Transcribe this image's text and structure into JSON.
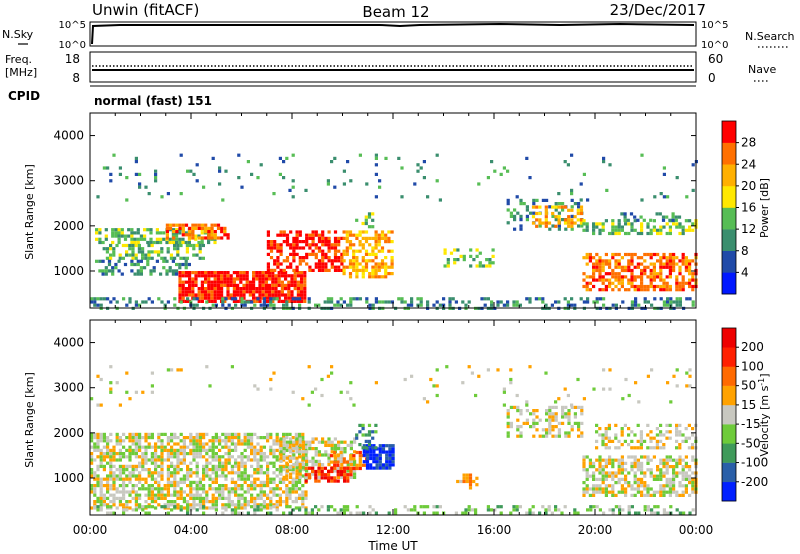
{
  "header": {
    "title": "Unwin (fitACF)",
    "beam": "Beam 12",
    "date": "23/Dec/2017"
  },
  "top_panels": {
    "nsky": {
      "label": "N.Sky",
      "right_label": "N.Search",
      "ticks_left": [
        "10^5",
        "10^0"
      ],
      "ticks_right": [
        "10^5",
        "10^0"
      ]
    },
    "freq": {
      "label_line1": "Freq.",
      "label_line2": "[MHz]",
      "ticks_left": [
        "18",
        "8"
      ],
      "right_label": "Nave",
      "ticks_right": [
        "60",
        "0"
      ]
    },
    "cpid": {
      "label": "CPID",
      "value": "normal (fast) 151"
    }
  },
  "x_axis": {
    "label": "Time UT",
    "ticks": [
      "00:00",
      "04:00",
      "08:00",
      "12:00",
      "16:00",
      "20:00",
      "00:00"
    ]
  },
  "chart_data": [
    {
      "type": "heatmap",
      "panel": "power",
      "ylabel": "Slant Range [km]",
      "yticks": [
        1000,
        2000,
        3000,
        4000
      ],
      "ylim": [
        180,
        4500
      ],
      "xlim_hours": [
        0,
        24
      ],
      "colorbar": {
        "label": "Power [dB]",
        "ticks": [
          "4",
          "8",
          "12",
          "16",
          "20",
          "24",
          "28"
        ],
        "colors": [
          "#0018ff",
          "#204aa8",
          "#3a8e6e",
          "#57bd55",
          "#ffe800",
          "#ffb000",
          "#ff7000",
          "#ff0000"
        ]
      },
      "regions": [
        {
          "t0": 0.2,
          "t1": 5.0,
          "r0": 1650,
          "r1": 1950,
          "lvl": 3,
          "den": 0.6
        },
        {
          "t0": 0.5,
          "t1": 4.5,
          "r0": 1300,
          "r1": 1600,
          "lvl": 3,
          "den": 0.55
        },
        {
          "t0": 3.0,
          "t1": 5.5,
          "r0": 1700,
          "r1": 2050,
          "lvl": 6,
          "den": 0.6
        },
        {
          "t0": 0.2,
          "t1": 4.0,
          "r0": 900,
          "r1": 1250,
          "lvl": 2,
          "den": 0.45
        },
        {
          "t0": 3.5,
          "t1": 8.5,
          "r0": 300,
          "r1": 1000,
          "lvl": 7,
          "den": 0.85
        },
        {
          "t0": 7.0,
          "t1": 10.0,
          "r0": 1000,
          "r1": 1900,
          "lvl": 7,
          "den": 0.6
        },
        {
          "t0": 10.0,
          "t1": 12.0,
          "r0": 900,
          "r1": 1900,
          "lvl": 5,
          "den": 0.55
        },
        {
          "t0": 10.5,
          "t1": 11.2,
          "r0": 1950,
          "r1": 2300,
          "lvl": 3,
          "den": 0.5
        },
        {
          "t0": 0.0,
          "t1": 24.0,
          "r0": 200,
          "r1": 420,
          "lvl": 2,
          "den": 0.35
        },
        {
          "t0": 16.5,
          "t1": 19.5,
          "r0": 1900,
          "r1": 2600,
          "lvl": 2,
          "den": 0.3
        },
        {
          "t0": 17.5,
          "t1": 19.5,
          "r0": 2000,
          "r1": 2450,
          "lvl": 5,
          "den": 0.4
        },
        {
          "t0": 14.0,
          "t1": 16.0,
          "r0": 1100,
          "r1": 1500,
          "lvl": 3,
          "den": 0.35
        },
        {
          "t0": 19.5,
          "t1": 24.0,
          "r0": 600,
          "r1": 1400,
          "lvl": 6,
          "den": 0.6
        },
        {
          "t0": 19.5,
          "t1": 24.0,
          "r0": 1800,
          "r1": 2150,
          "lvl": 3,
          "den": 0.5
        },
        {
          "t0": 21.0,
          "t1": 23.5,
          "r0": 2100,
          "r1": 2300,
          "lvl": 2,
          "den": 0.35
        },
        {
          "t0": 0.0,
          "t1": 24.0,
          "r0": 2600,
          "r1": 3600,
          "lvl": 2,
          "den": 0.04
        }
      ]
    },
    {
      "type": "heatmap",
      "panel": "velocity",
      "ylabel": "Slant Range [km]",
      "yticks": [
        1000,
        2000,
        3000,
        4000
      ],
      "ylim": [
        180,
        4500
      ],
      "xlim_hours": [
        0,
        24
      ],
      "colorbar": {
        "label": "Velocity [m s^-1]",
        "ticks": [
          "200",
          "100",
          "50",
          "15",
          "-15",
          "-50",
          "-100",
          "-200"
        ],
        "colors": [
          "#0020ff",
          "#2a5fa8",
          "#3f9a5a",
          "#6ecb3a",
          "#c8c8c0",
          "#ffa200",
          "#ff6a00",
          "#ff2000",
          "#ee0000"
        ]
      },
      "regions": [
        {
          "t0": 0.0,
          "t1": 8.5,
          "r0": 300,
          "r1": 2000,
          "lvl": 4,
          "den": 0.65
        },
        {
          "t0": 7.5,
          "t1": 10.5,
          "r0": 1000,
          "r1": 1900,
          "lvl": 4,
          "den": 0.55
        },
        {
          "t0": 8.5,
          "t1": 10.5,
          "r0": 900,
          "r1": 1250,
          "lvl": 7,
          "den": 0.55
        },
        {
          "t0": 9.5,
          "t1": 11.0,
          "r0": 1200,
          "r1": 1600,
          "lvl": 6,
          "den": 0.45
        },
        {
          "t0": 10.8,
          "t1": 12.0,
          "r0": 1250,
          "r1": 1750,
          "lvl": 0,
          "den": 0.85
        },
        {
          "t0": 10.5,
          "t1": 11.3,
          "r0": 1700,
          "r1": 2200,
          "lvl": 2,
          "den": 0.4
        },
        {
          "t0": 0.0,
          "t1": 24.0,
          "r0": 200,
          "r1": 400,
          "lvl": 3,
          "den": 0.35
        },
        {
          "t0": 14.5,
          "t1": 15.5,
          "r0": 800,
          "r1": 1100,
          "lvl": 5,
          "den": 0.45
        },
        {
          "t0": 16.5,
          "t1": 19.5,
          "r0": 1900,
          "r1": 2600,
          "lvl": 4,
          "den": 0.4
        },
        {
          "t0": 19.5,
          "t1": 24.0,
          "r0": 600,
          "r1": 1500,
          "lvl": 4,
          "den": 0.6
        },
        {
          "t0": 20.0,
          "t1": 24.0,
          "r0": 1700,
          "r1": 2200,
          "lvl": 4,
          "den": 0.4
        },
        {
          "t0": 0.0,
          "t1": 24.0,
          "r0": 2600,
          "r1": 3500,
          "lvl": 4,
          "den": 0.03
        }
      ]
    }
  ]
}
